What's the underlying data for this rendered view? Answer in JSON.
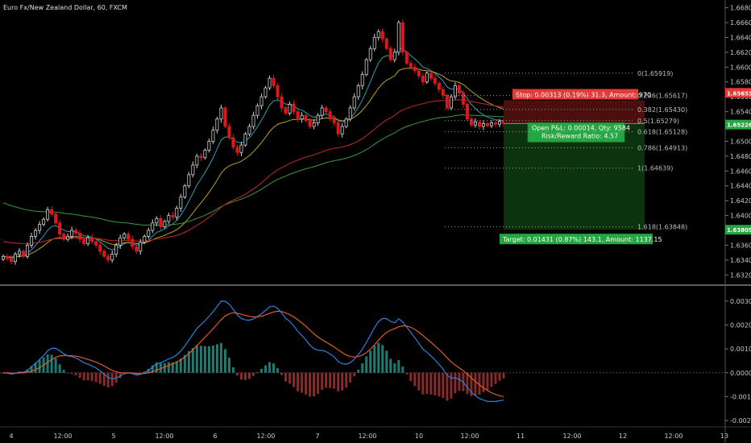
{
  "chart_data": {
    "type": "candlestick",
    "title": "Euro Fx/New Zealand Dollar, 60, FXCM",
    "price_ticks": [
      "1.66800",
      "1.66600",
      "1.66400",
      "1.66200",
      "1.66000",
      "1.65800",
      "1.65600",
      "1.65400",
      "1.65200",
      "1.65000",
      "1.64800",
      "1.64600",
      "1.64400",
      "1.64200",
      "1.64000",
      "1.63800",
      "1.63600",
      "1.63400",
      "1.63200"
    ],
    "macd_ticks": [
      "0.0030",
      "0.0020",
      "0.0010",
      "0.0000",
      "-0.0010",
      "-0.0020"
    ],
    "x_ticks": [
      "4",
      "12:00",
      "5",
      "12:00",
      "6",
      "12:00",
      "7",
      "12:00",
      "10",
      "12:00",
      "11",
      "12:00",
      "12",
      "12:00",
      "13"
    ],
    "price_range": [
      1.6316,
      1.6685
    ],
    "macd_range": [
      -0.0022,
      0.0034
    ],
    "price_tags": [
      {
        "label": "1.65653",
        "color": "#e53935",
        "price": 1.65653
      },
      {
        "label": "1.65226",
        "color": "#26a641",
        "price": 1.65226
      },
      {
        "label": "1.63809",
        "color": "#26a641",
        "price": 1.63809
      }
    ],
    "fib_levels": [
      {
        "label": "0(1.65919)",
        "price": 1.65919
      },
      {
        "label": "0.236(1.65617)",
        "price": 1.65617
      },
      {
        "label": "0.382(1.65430)",
        "price": 1.6543
      },
      {
        "label": "0.5(1.65279)",
        "price": 1.65279
      },
      {
        "label": "0.618(1.65128)",
        "price": 1.65128
      },
      {
        "label": "0.786(1.64913)",
        "price": 1.64913
      },
      {
        "label": "1(1.64639)",
        "price": 1.64639
      },
      {
        "label": "1.618(1.63848)",
        "price": 1.63848
      }
    ],
    "position": {
      "stop_text": "Stop: 0.00313 (0.19%) 31.3, Amount: 970",
      "pnl_text": "Open P&L: 0.00014, Qty: 9584",
      "rr_text": "Risk/Reward Ratio: 4.57",
      "target_text": "Target: 0.01431 (0.87%) 143.1, Amount: 1137.15",
      "entry": 1.6524,
      "stop": 1.65553,
      "target": 1.63809
    },
    "closes": [
      1.6345,
      1.6342,
      1.6338,
      1.6348,
      1.6352,
      1.6345,
      1.636,
      1.6372,
      1.638,
      1.6388,
      1.6395,
      1.6408,
      1.6402,
      1.639,
      1.6375,
      1.6368,
      1.6372,
      1.638,
      1.6376,
      1.6368,
      1.6362,
      1.637,
      1.6365,
      1.636,
      1.6352,
      1.6345,
      1.634,
      1.6348,
      1.636,
      1.637,
      1.6375,
      1.6368,
      1.6358,
      1.6352,
      1.6364,
      1.6372,
      1.638,
      1.639,
      1.6396,
      1.6385,
      1.6392,
      1.64,
      1.6398,
      1.641,
      1.6425,
      1.644,
      1.6455,
      1.6468,
      1.648,
      1.6478,
      1.6488,
      1.65,
      1.6515,
      1.653,
      1.6545,
      1.652,
      1.6505,
      1.6492,
      1.6485,
      1.6495,
      1.651,
      1.652,
      1.6535,
      1.6548,
      1.656,
      1.6572,
      1.6585,
      1.6575,
      1.656,
      1.6545,
      1.6538,
      1.655,
      1.654,
      1.653,
      1.6535,
      1.6528,
      1.652,
      1.6525,
      1.6535,
      1.6545,
      1.654,
      1.653,
      1.6525,
      1.651,
      1.652,
      1.653,
      1.6545,
      1.656,
      1.6575,
      1.659,
      1.661,
      1.6625,
      1.664,
      1.6648,
      1.6638,
      1.6625,
      1.661,
      1.662,
      1.666,
      1.662,
      1.6605,
      1.66,
      1.6595,
      1.6588,
      1.658,
      1.6592,
      1.6585,
      1.6578,
      1.657,
      1.6562,
      1.6545,
      1.656,
      1.6575,
      1.6565,
      1.655,
      1.653,
      1.6522,
      1.6526,
      1.652,
      1.6524,
      1.6521,
      1.6525,
      1.6523,
      1.6527,
      1.6524
    ]
  }
}
